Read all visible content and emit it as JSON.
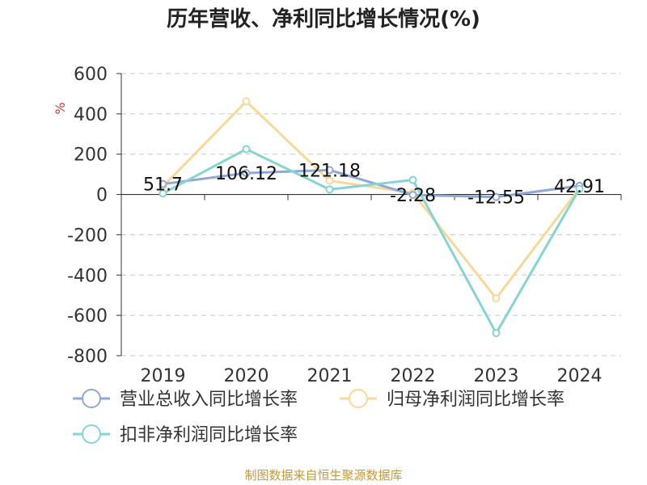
{
  "chart_data": {
    "type": "line",
    "title": "历年营收、净利同比增长情况(%)",
    "ylabel": "%",
    "categories": [
      "2019",
      "2020",
      "2021",
      "2022",
      "2023",
      "2024"
    ],
    "ylim": [
      -800,
      600
    ],
    "yticks": [
      600,
      400,
      200,
      0,
      -200,
      -400,
      -600,
      -800
    ],
    "grid": true,
    "legend_position": "bottom",
    "series": [
      {
        "name": "营业总收入同比增长率",
        "color": "#8fa8d6",
        "values": [
          51.7,
          106.12,
          121.18,
          -2.28,
          -12.55,
          42.91
        ],
        "labels": [
          "51.7",
          "106.12",
          "121.18",
          "-2.28",
          "-12.55",
          "42.91"
        ]
      },
      {
        "name": "归母净利润同比增长率",
        "color": "#f9d99a",
        "values": [
          40,
          462,
          68,
          8,
          -515,
          30
        ]
      },
      {
        "name": "扣非净利润同比增长率",
        "color": "#86d4d4",
        "values": [
          5,
          225,
          25,
          72,
          -688,
          28
        ]
      }
    ]
  },
  "source": "制图数据来自恒生聚源数据库"
}
